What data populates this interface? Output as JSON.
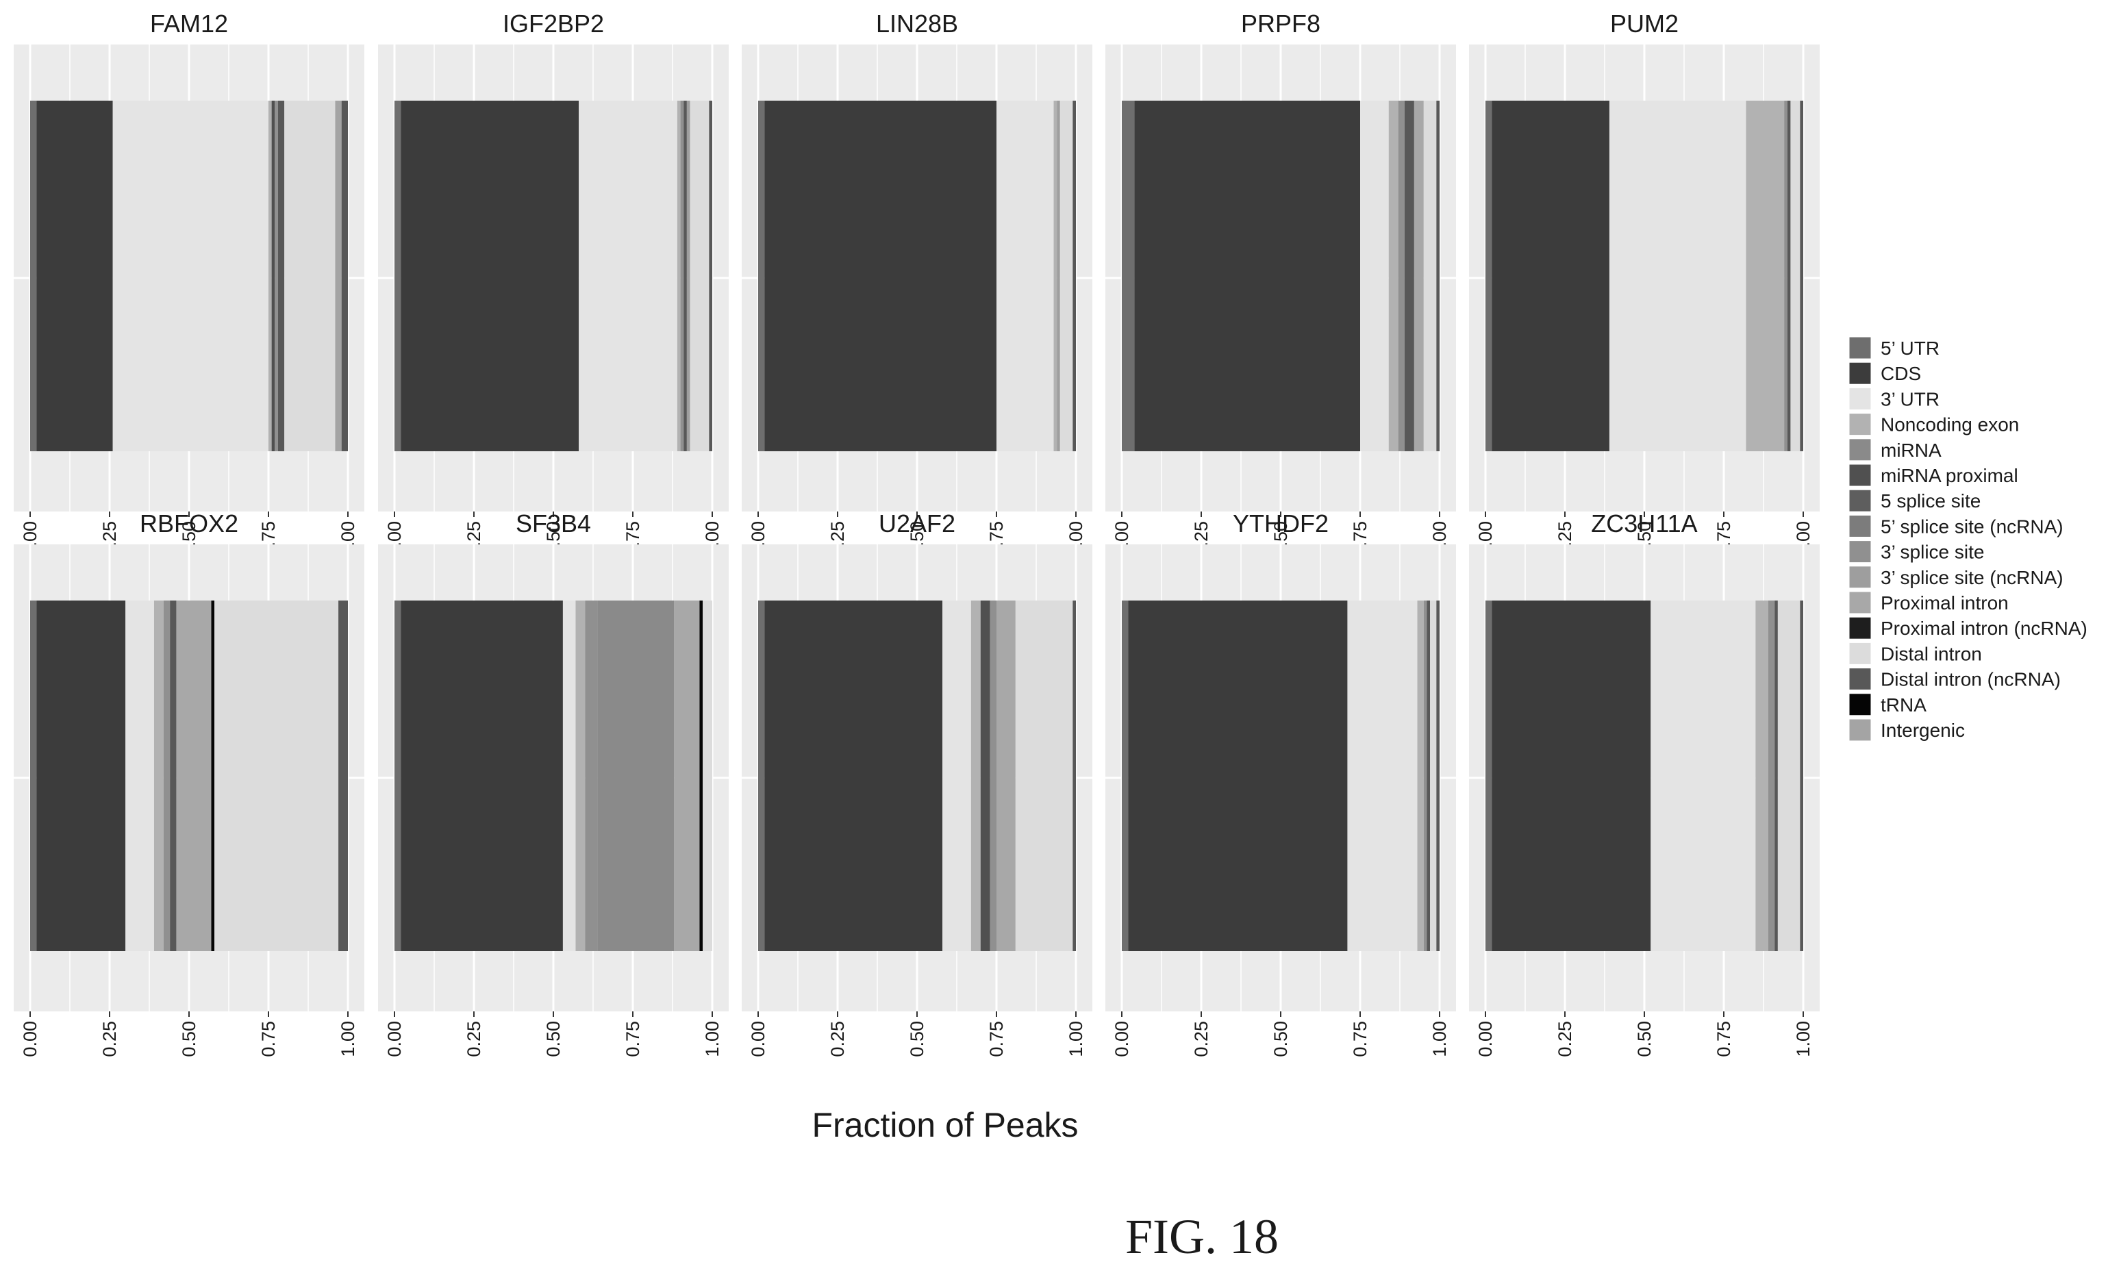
{
  "chart_data": {
    "type": "bar",
    "orientation": "horizontal-stacked",
    "xlabel": "Fraction of Peaks",
    "xlim": [
      0,
      1
    ],
    "xticks": [
      "0.00",
      "0.25",
      "0.50",
      "0.75",
      "1.00"
    ],
    "grid": true,
    "legend_position": "right",
    "legend": [
      {
        "label": "5’ UTR",
        "color": "#6e6e6e"
      },
      {
        "label": "CDS",
        "color": "#3c3c3c"
      },
      {
        "label": "3’ UTR",
        "color": "#e4e4e4"
      },
      {
        "label": "Noncoding exon",
        "color": "#b2b2b2"
      },
      {
        "label": "miRNA",
        "color": "#8a8a8a"
      },
      {
        "label": "miRNA proximal",
        "color": "#505050"
      },
      {
        "label": "5 splice site",
        "color": "#5e5e5e"
      },
      {
        "label": "5’ splice site (ncRNA)",
        "color": "#7c7c7c"
      },
      {
        "label": "3’ splice site",
        "color": "#909090"
      },
      {
        "label": "3’ splice site (ncRNA)",
        "color": "#9e9e9e"
      },
      {
        "label": "Proximal intron",
        "color": "#a8a8a8"
      },
      {
        "label": "Proximal intron (ncRNA)",
        "color": "#1e1e1e"
      },
      {
        "label": "Distal intron",
        "color": "#dcdcdc"
      },
      {
        "label": "Distal intron (ncRNA)",
        "color": "#585858"
      },
      {
        "label": "tRNA",
        "color": "#050505"
      },
      {
        "label": "Intergenic",
        "color": "#a4a4a4"
      }
    ],
    "panels": [
      {
        "name": "FAM12",
        "segments": [
          {
            "category": "5’ UTR",
            "value": 0.02
          },
          {
            "category": "CDS",
            "value": 0.24
          },
          {
            "category": "3’ UTR",
            "value": 0.49
          },
          {
            "category": "Noncoding exon",
            "value": 0.01
          },
          {
            "category": "miRNA proximal",
            "value": 0.01
          },
          {
            "category": "3’ splice site",
            "value": 0.01
          },
          {
            "category": "Distal intron (ncRNA)",
            "value": 0.02
          },
          {
            "category": "Distal intron",
            "value": 0.16
          },
          {
            "category": "Intergenic",
            "value": 0.02
          },
          {
            "category": "Distal intron (ncRNA)",
            "value": 0.02
          }
        ]
      },
      {
        "name": "IGF2BP2",
        "segments": [
          {
            "category": "5’ UTR",
            "value": 0.02
          },
          {
            "category": "CDS",
            "value": 0.56
          },
          {
            "category": "3’ UTR",
            "value": 0.31
          },
          {
            "category": "Noncoding exon",
            "value": 0.01
          },
          {
            "category": "3’ splice site",
            "value": 0.01
          },
          {
            "category": "Distal intron (ncRNA)",
            "value": 0.01
          },
          {
            "category": "3’ splice site (ncRNA)",
            "value": 0.01
          },
          {
            "category": "Distal intron",
            "value": 0.06
          },
          {
            "category": "Distal intron (ncRNA)",
            "value": 0.01
          }
        ]
      },
      {
        "name": "LIN28B",
        "segments": [
          {
            "category": "5’ UTR",
            "value": 0.02
          },
          {
            "category": "CDS",
            "value": 0.73
          },
          {
            "category": "3’ UTR",
            "value": 0.18
          },
          {
            "category": "Noncoding exon",
            "value": 0.01
          },
          {
            "category": "3’ splice site (ncRNA)",
            "value": 0.01
          },
          {
            "category": "Distal intron",
            "value": 0.04
          },
          {
            "category": "Distal intron (ncRNA)",
            "value": 0.01
          }
        ]
      },
      {
        "name": "PRPF8",
        "segments": [
          {
            "category": "5’ UTR",
            "value": 0.04
          },
          {
            "category": "CDS",
            "value": 0.71
          },
          {
            "category": "3’ UTR",
            "value": 0.09
          },
          {
            "category": "Noncoding exon",
            "value": 0.03
          },
          {
            "category": "3’ splice site",
            "value": 0.02
          },
          {
            "category": "Distal intron (ncRNA)",
            "value": 0.03
          },
          {
            "category": "Proximal intron",
            "value": 0.03
          },
          {
            "category": "Distal intron",
            "value": 0.04
          },
          {
            "category": "Distal intron (ncRNA)",
            "value": 0.01
          }
        ]
      },
      {
        "name": "PUM2",
        "segments": [
          {
            "category": "5’ UTR",
            "value": 0.02
          },
          {
            "category": "CDS",
            "value": 0.37
          },
          {
            "category": "3’ UTR",
            "value": 0.43
          },
          {
            "category": "Noncoding exon",
            "value": 0.12
          },
          {
            "category": "3’ splice site",
            "value": 0.01
          },
          {
            "category": "Distal intron (ncRNA)",
            "value": 0.01
          },
          {
            "category": "Distal intron",
            "value": 0.03
          },
          {
            "category": "Distal intron (ncRNA)",
            "value": 0.01
          }
        ]
      },
      {
        "name": "RBFOX2",
        "segments": [
          {
            "category": "5’ UTR",
            "value": 0.02
          },
          {
            "category": "CDS",
            "value": 0.28
          },
          {
            "category": "3’ UTR",
            "value": 0.09
          },
          {
            "category": "Noncoding exon",
            "value": 0.03
          },
          {
            "category": "3’ splice site",
            "value": 0.02
          },
          {
            "category": "Distal intron (ncRNA)",
            "value": 0.02
          },
          {
            "category": "Proximal intron",
            "value": 0.11
          },
          {
            "category": "tRNA",
            "value": 0.01
          },
          {
            "category": "Distal intron",
            "value": 0.39
          },
          {
            "category": "Distal intron (ncRNA)",
            "value": 0.03
          }
        ]
      },
      {
        "name": "SF3B4",
        "segments": [
          {
            "category": "5’ UTR",
            "value": 0.02
          },
          {
            "category": "CDS",
            "value": 0.51
          },
          {
            "category": "3’ UTR",
            "value": 0.04
          },
          {
            "category": "Noncoding exon",
            "value": 0.03
          },
          {
            "category": "3’ splice site",
            "value": 0.04
          },
          {
            "category": "miRNA",
            "value": 0.24
          },
          {
            "category": "Proximal intron",
            "value": 0.08
          },
          {
            "category": "tRNA",
            "value": 0.01
          },
          {
            "category": "Distal intron",
            "value": 0.03
          }
        ]
      },
      {
        "name": "U2AF2",
        "segments": [
          {
            "category": "5’ UTR",
            "value": 0.02
          },
          {
            "category": "CDS",
            "value": 0.56
          },
          {
            "category": "3’ UTR",
            "value": 0.09
          },
          {
            "category": "Noncoding exon",
            "value": 0.03
          },
          {
            "category": "miRNA proximal",
            "value": 0.03
          },
          {
            "category": "3’ splice site",
            "value": 0.02
          },
          {
            "category": "Proximal intron",
            "value": 0.06
          },
          {
            "category": "Distal intron",
            "value": 0.18
          },
          {
            "category": "Distal intron (ncRNA)",
            "value": 0.01
          }
        ]
      },
      {
        "name": "YTHDF2",
        "segments": [
          {
            "category": "5’ UTR",
            "value": 0.02
          },
          {
            "category": "CDS",
            "value": 0.69
          },
          {
            "category": "3’ UTR",
            "value": 0.22
          },
          {
            "category": "Noncoding exon",
            "value": 0.02
          },
          {
            "category": "3’ splice site",
            "value": 0.01
          },
          {
            "category": "Distal intron (ncRNA)",
            "value": 0.01
          },
          {
            "category": "Distal intron",
            "value": 0.02
          },
          {
            "category": "Distal intron (ncRNA)",
            "value": 0.01
          }
        ]
      },
      {
        "name": "ZC3H11A",
        "segments": [
          {
            "category": "5’ UTR",
            "value": 0.02
          },
          {
            "category": "CDS",
            "value": 0.5
          },
          {
            "category": "3’ UTR",
            "value": 0.33
          },
          {
            "category": "Noncoding exon",
            "value": 0.04
          },
          {
            "category": "3’ splice site",
            "value": 0.02
          },
          {
            "category": "Distal intron (ncRNA)",
            "value": 0.01
          },
          {
            "category": "Distal intron",
            "value": 0.07
          },
          {
            "category": "Distal intron (ncRNA)",
            "value": 0.01
          }
        ]
      }
    ]
  },
  "figure_label": "FIG. 18"
}
